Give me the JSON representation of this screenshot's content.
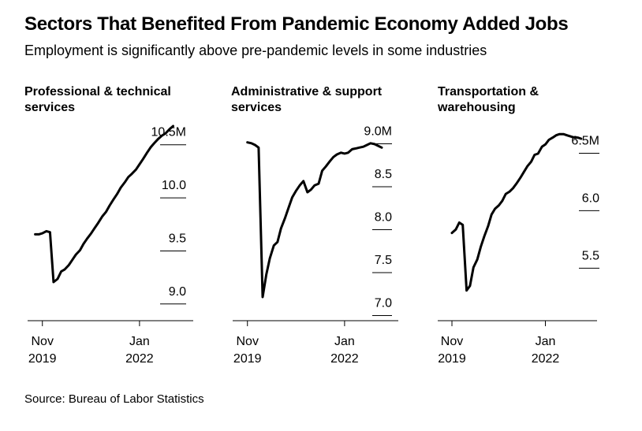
{
  "title": "Sectors That Benefited From Pandemic Economy Added Jobs",
  "subtitle": "Employment is significantly above pre-pandemic levels in some industries",
  "source": "Source: Bureau of Labor Statistics",
  "colors": {
    "line": "#000000",
    "text": "#000000",
    "background": "#ffffff"
  },
  "chart_data": [
    {
      "type": "line",
      "title_lines": [
        "Professional & technical",
        "services"
      ],
      "xlabels": [
        {
          "month": "Nov",
          "year": "2019",
          "x": 2019.83
        },
        {
          "month": "Jan",
          "year": "2022",
          "x": 2022.0
        }
      ],
      "xlim": [
        2019.5,
        2023.2
      ],
      "ylim": [
        8.85,
        10.55
      ],
      "yticks": [
        {
          "value": 10.5,
          "label": "10.5M"
        },
        {
          "value": 10.0,
          "label": "10.0"
        },
        {
          "value": 9.5,
          "label": "9.5"
        },
        {
          "value": 9.0,
          "label": "9.0"
        }
      ],
      "x": [
        2019.67,
        2019.75,
        2019.83,
        2019.92,
        2020.0,
        2020.08,
        2020.17,
        2020.25,
        2020.33,
        2020.42,
        2020.5,
        2020.58,
        2020.67,
        2020.75,
        2020.83,
        2020.92,
        2021.0,
        2021.08,
        2021.17,
        2021.25,
        2021.33,
        2021.42,
        2021.5,
        2021.58,
        2021.67,
        2021.75,
        2021.83,
        2021.92,
        2022.0,
        2022.08,
        2022.17,
        2022.25,
        2022.33,
        2022.42,
        2022.5,
        2022.58,
        2022.67,
        2022.75
      ],
      "values": [
        9.53,
        9.53,
        9.54,
        9.56,
        9.55,
        9.08,
        9.11,
        9.18,
        9.2,
        9.24,
        9.29,
        9.34,
        9.38,
        9.44,
        9.49,
        9.54,
        9.59,
        9.64,
        9.7,
        9.74,
        9.8,
        9.86,
        9.91,
        9.97,
        10.02,
        10.07,
        10.1,
        10.14,
        10.19,
        10.24,
        10.3,
        10.35,
        10.39,
        10.43,
        10.46,
        10.48,
        10.52,
        10.55
      ]
    },
    {
      "type": "line",
      "title_lines": [
        "Administrative & support",
        "services"
      ],
      "xlabels": [
        {
          "month": "Nov",
          "year": "2019",
          "x": 2019.83
        },
        {
          "month": "Jan",
          "year": "2022",
          "x": 2022.0
        }
      ],
      "xlim": [
        2019.5,
        2023.2
      ],
      "ylim": [
        6.95,
        9.05
      ],
      "yticks": [
        {
          "value": 9.0,
          "label": "9.0M"
        },
        {
          "value": 8.5,
          "label": "8.5"
        },
        {
          "value": 8.0,
          "label": "8.0"
        },
        {
          "value": 7.5,
          "label": "7.5"
        },
        {
          "value": 7.0,
          "label": "7.0"
        }
      ],
      "x": [
        2019.83,
        2019.92,
        2020.0,
        2020.08,
        2020.17,
        2020.25,
        2020.33,
        2020.42,
        2020.5,
        2020.58,
        2020.67,
        2020.75,
        2020.83,
        2020.92,
        2021.0,
        2021.08,
        2021.17,
        2021.25,
        2021.33,
        2021.42,
        2021.5,
        2021.58,
        2021.67,
        2021.75,
        2021.83,
        2021.92,
        2022.0,
        2022.08,
        2022.17,
        2022.25,
        2022.33,
        2022.42,
        2022.5,
        2022.58,
        2022.67,
        2022.75,
        2022.83
      ],
      "values": [
        8.86,
        8.85,
        8.83,
        8.8,
        7.06,
        7.32,
        7.51,
        7.66,
        7.7,
        7.86,
        7.98,
        8.1,
        8.22,
        8.3,
        8.36,
        8.41,
        8.28,
        8.31,
        8.36,
        8.38,
        8.53,
        8.58,
        8.64,
        8.69,
        8.72,
        8.74,
        8.73,
        8.74,
        8.78,
        8.79,
        8.8,
        8.81,
        8.83,
        8.85,
        8.84,
        8.82,
        8.8
      ]
    },
    {
      "type": "line",
      "title_lines": [
        "Transportation &",
        "warehousing"
      ],
      "xlabels": [
        {
          "month": "Nov",
          "year": "2019",
          "x": 2019.83
        },
        {
          "month": "Jan",
          "year": "2022",
          "x": 2022.0
        }
      ],
      "xlim": [
        2019.5,
        2023.2
      ],
      "ylim": [
        5.05,
        6.62
      ],
      "yticks": [
        {
          "value": 6.5,
          "label": "6.5M"
        },
        {
          "value": 6.0,
          "label": "6.0"
        },
        {
          "value": 5.5,
          "label": "5.5"
        }
      ],
      "x": [
        2019.83,
        2019.92,
        2020.0,
        2020.08,
        2020.17,
        2020.25,
        2020.33,
        2020.42,
        2020.5,
        2020.58,
        2020.67,
        2020.75,
        2020.83,
        2020.92,
        2021.0,
        2021.08,
        2021.17,
        2021.25,
        2021.33,
        2021.42,
        2021.5,
        2021.58,
        2021.67,
        2021.75,
        2021.83,
        2021.92,
        2022.0,
        2022.08,
        2022.17,
        2022.25,
        2022.33,
        2022.42,
        2022.5,
        2022.58,
        2022.67,
        2022.75,
        2022.83
      ],
      "values": [
        5.69,
        5.72,
        5.78,
        5.76,
        5.19,
        5.23,
        5.39,
        5.46,
        5.57,
        5.66,
        5.75,
        5.85,
        5.9,
        5.93,
        5.97,
        6.03,
        6.05,
        6.08,
        6.12,
        6.17,
        6.22,
        6.27,
        6.31,
        6.37,
        6.38,
        6.44,
        6.46,
        6.5,
        6.52,
        6.54,
        6.55,
        6.55,
        6.54,
        6.53,
        6.52,
        6.52,
        6.51
      ]
    }
  ]
}
